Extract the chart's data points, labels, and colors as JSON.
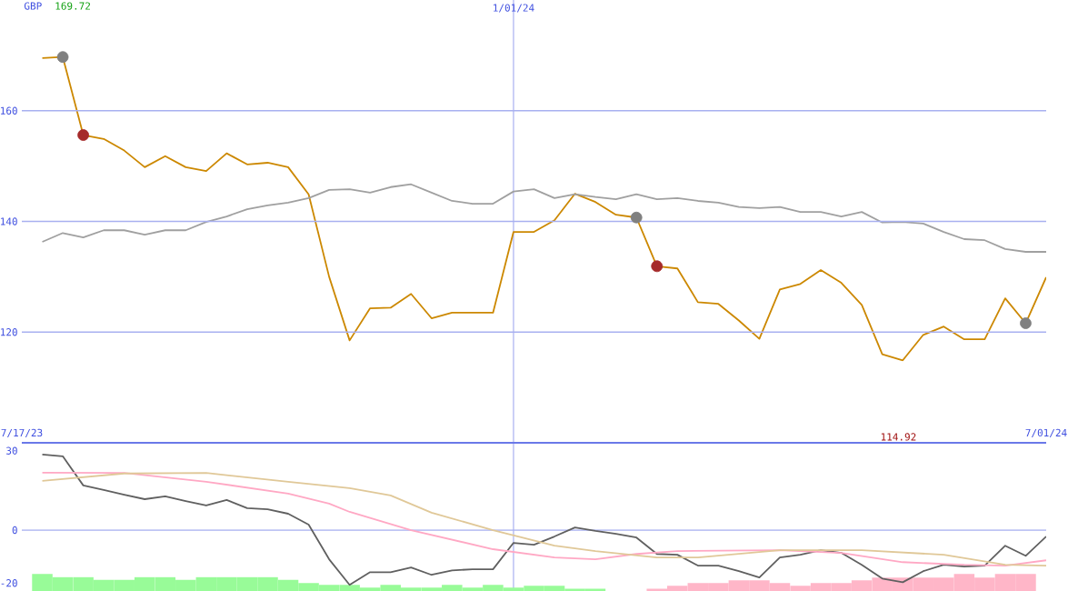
{
  "chart_data": [
    {
      "type": "line",
      "ylabel": "GBP",
      "annotations": [
        "169.72",
        "114.92"
      ],
      "x": [
        "2023-07-24",
        "2023-07-31",
        "2023-08-07",
        "2023-08-14",
        "2023-08-21",
        "2023-08-28",
        "2023-09-04",
        "2023-09-11",
        "2023-09-18",
        "2023-09-25",
        "2023-10-02",
        "2023-10-09",
        "2023-10-16",
        "2023-10-23",
        "2023-10-30",
        "2023-11-06",
        "2023-11-13",
        "2023-11-20",
        "2023-11-27",
        "2023-12-04",
        "2023-12-11",
        "2023-12-18",
        "2023-12-25",
        "2024-01-01",
        "2024-01-08",
        "2024-01-15",
        "2024-01-22",
        "2024-01-29",
        "2024-02-05",
        "2024-02-12",
        "2024-02-19",
        "2024-02-26",
        "2024-03-04",
        "2024-03-11",
        "2024-03-18",
        "2024-03-25",
        "2024-04-01",
        "2024-04-08",
        "2024-04-15",
        "2024-04-22",
        "2024-04-29",
        "2024-05-06",
        "2024-05-13",
        "2024-05-20",
        "2024-05-27",
        "2024-06-03",
        "2024-06-10",
        "2024-06-17",
        "2024-06-24",
        "2024-07-01"
      ],
      "xlim": [
        "2023-07-17",
        "2024-07-01"
      ],
      "xticks": [
        {
          "value": "2023-07-17",
          "label": "7/17/23"
        },
        {
          "value": "2024-07-01",
          "label": "7/01/24"
        }
      ],
      "ref_lines": [
        {
          "axis": "x",
          "value": "2024-01-01",
          "label": "1/01/24",
          "color": "#a8b0f0"
        }
      ],
      "ylim": [
        100,
        180
      ],
      "yticks": [
        120,
        140,
        160
      ],
      "grid": "y",
      "series": [
        {
          "color": "#cc8800",
          "values": [
            169.5,
            169.7,
            155.6,
            154.9,
            152.8,
            149.8,
            151.8,
            149.8,
            149.1,
            152.3,
            150.3,
            150.6,
            149.8,
            144.9,
            130.0,
            118.5,
            124.3,
            124.4,
            126.9,
            122.5,
            123.5,
            123.5,
            123.5,
            138.1,
            138.1,
            140.2,
            145.0,
            143.5,
            141.2,
            140.7,
            131.9,
            131.5,
            125.4,
            125.1,
            122.1,
            118.8,
            127.7,
            128.7,
            131.2,
            128.9,
            124.9,
            116.0,
            114.9,
            119.5,
            121.0,
            118.7,
            118.7,
            126.1,
            121.6,
            129.9
          ]
        },
        {
          "color": "#a0a0a0",
          "values": [
            136.3,
            137.9,
            137.1,
            138.4,
            138.4,
            137.6,
            138.4,
            138.4,
            139.9,
            140.9,
            142.2,
            142.9,
            143.4,
            144.2,
            145.7,
            145.8,
            145.2,
            146.2,
            146.7,
            145.2,
            143.7,
            143.2,
            143.2,
            145.4,
            145.8,
            144.2,
            144.9,
            144.4,
            144.0,
            144.9,
            144.0,
            144.2,
            143.7,
            143.4,
            142.6,
            142.4,
            142.6,
            141.7,
            141.7,
            140.9,
            141.7,
            139.8,
            139.9,
            139.6,
            138.1,
            136.8,
            136.6,
            135.0,
            134.5,
            134.5
          ]
        },
        {
          "type": "scatter",
          "color": "#808080",
          "x": [
            "2023-07-31",
            "2024-02-12",
            "2024-06-24"
          ],
          "values": [
            169.7,
            140.7,
            121.6
          ]
        },
        {
          "type": "scatter",
          "color": "#a52a2a",
          "x": [
            "2023-08-07",
            "2024-02-19"
          ],
          "values": [
            155.6,
            131.9
          ]
        }
      ]
    },
    {
      "type": "line",
      "tick_labels": "y",
      "x": [
        "2023-07-24",
        "2023-07-31",
        "2023-08-07",
        "2023-08-14",
        "2023-08-21",
        "2023-08-28",
        "2023-09-04",
        "2023-09-11",
        "2023-09-18",
        "2023-09-25",
        "2023-10-02",
        "2023-10-09",
        "2023-10-16",
        "2023-10-23",
        "2023-10-30",
        "2023-11-06",
        "2023-11-13",
        "2023-11-20",
        "2023-11-27",
        "2023-12-04",
        "2023-12-11",
        "2023-12-18",
        "2023-12-25",
        "2024-01-01",
        "2024-01-08",
        "2024-01-15",
        "2024-01-22",
        "2024-01-29",
        "2024-02-05",
        "2024-02-12",
        "2024-02-19",
        "2024-02-26",
        "2024-03-04",
        "2024-03-11",
        "2024-03-18",
        "2024-03-25",
        "2024-04-01",
        "2024-04-08",
        "2024-04-15",
        "2024-04-22",
        "2024-04-29",
        "2024-05-06",
        "2024-05-13",
        "2024-05-20",
        "2024-05-27",
        "2024-06-03",
        "2024-06-10",
        "2024-06-17",
        "2024-06-24",
        "2024-07-01"
      ],
      "xlim": [
        "2023-07-17",
        "2024-07-01"
      ],
      "ylim": [
        -23,
        33
      ],
      "yticks": [
        30,
        0,
        -20
      ],
      "ref_lines": [
        {
          "axis": "y",
          "value": 0,
          "color": "#a8b0f0"
        },
        {
          "axis": "x",
          "value": "2024-01-01",
          "color": "#a8b0f0"
        }
      ],
      "series": [
        {
          "type": "bar",
          "colors": [
            "#98fb98",
            "#98fb98",
            "#98fb98",
            "#98fb98",
            "#98fb98",
            "#98fb98",
            "#98fb98",
            "#98fb98",
            "#98fb98",
            "#98fb98",
            "#98fb98",
            "#98fb98",
            "#98fb98",
            "#98fb98",
            "#98fb98",
            "#98fb98",
            "#98fb98",
            "#98fb98",
            "#98fb98",
            "#98fb98",
            "#98fb98",
            "#98fb98",
            "#98fb98",
            "#98fb98",
            "#98fb98",
            "#98fb98",
            "#98fb98",
            "#98fb98",
            "#98fb98",
            "#98fb98",
            "#ffb6c8",
            "#ffb6c8",
            "#ffb6c8",
            "#ffb6c8",
            "#ffb6c8",
            "#ffb6c8",
            "#ffb6c8",
            "#ffb6c8",
            "#ffb6c8",
            "#ffb6c8",
            "#ffb6c8",
            "#ffb6c8",
            "#ffb6c8",
            "#ffb6c8",
            "#ffb6c8",
            "#ffb6c8",
            "#ffb6c8",
            "#ffb6c8",
            "#ffb6c8",
            "#ffb6c8"
          ],
          "base": [
            -23,
            -23,
            -23,
            -23,
            -23,
            -23,
            -23,
            -23,
            -23,
            -23,
            -23,
            -23,
            -23,
            -23,
            -23,
            -23,
            -23,
            -23,
            -23,
            -23,
            -23,
            -23,
            -23,
            -23,
            -23,
            -23,
            -23,
            -23,
            null,
            null,
            -23,
            -23,
            -23,
            -23,
            -23,
            -23,
            -23,
            -23,
            -23,
            -23,
            -23,
            -23,
            -23,
            -23,
            -23,
            -23,
            -23,
            -23,
            -23,
            null
          ],
          "values": [
            6.4,
            5.2,
            5.2,
            4.2,
            4.2,
            5.2,
            5.2,
            4.2,
            5.2,
            5.2,
            5.2,
            5.2,
            4.2,
            3.0,
            2.3,
            2.3,
            1.3,
            2.3,
            1.3,
            1.3,
            2.3,
            1.3,
            2.3,
            1.3,
            2.0,
            2.0,
            0.9,
            0.9,
            null,
            null,
            0.9,
            2.0,
            3.0,
            3.0,
            4.0,
            4.0,
            3.0,
            2.0,
            3.0,
            3.0,
            4.0,
            5.1,
            5.1,
            5.1,
            5.1,
            6.4,
            5.1,
            6.4,
            6.4,
            null
          ]
        },
        {
          "color": "#606060",
          "values": [
            28.6,
            27.9,
            16.9,
            15.2,
            13.4,
            11.7,
            12.8,
            11.0,
            9.3,
            11.4,
            8.3,
            7.9,
            6.2,
            2.1,
            -11.0,
            -20.7,
            -15.9,
            -15.9,
            -14.1,
            -16.9,
            -15.2,
            -14.8,
            -14.8,
            -4.8,
            -5.5,
            -2.4,
            1.0,
            -0.3,
            -1.4,
            -2.8,
            -9.0,
            -9.3,
            -13.4,
            -13.4,
            -15.5,
            -17.9,
            -10.3,
            -9.3,
            -7.6,
            -8.6,
            -13.1,
            -18.3,
            -19.7,
            -15.5,
            -13.1,
            -13.8,
            -13.4,
            -5.9,
            -9.7,
            -2.4
          ]
        },
        {
          "color": "#ffa8c4",
          "x": [
            "2023-07-24",
            "2023-08-21",
            "2023-09-18",
            "2023-10-16",
            "2023-10-30",
            "2023-11-06",
            "2023-11-27",
            "2023-12-25",
            "2024-01-15",
            "2024-01-29",
            "2024-02-12",
            "2024-02-26",
            "2024-04-01",
            "2024-04-22",
            "2024-05-13",
            "2024-06-03",
            "2024-06-17",
            "2024-07-01"
          ],
          "values": [
            21.7,
            21.6,
            18.3,
            13.8,
            10.0,
            6.9,
            0,
            -7.2,
            -10.3,
            -11.0,
            -9.0,
            -7.9,
            -7.6,
            -8.6,
            -12.1,
            -13.1,
            -13.4,
            -11.4
          ]
        },
        {
          "color": "#e0c898",
          "x": [
            "2023-07-24",
            "2023-08-21",
            "2023-09-18",
            "2023-10-16",
            "2023-11-06",
            "2023-11-20",
            "2023-12-04",
            "2023-12-25",
            "2024-01-15",
            "2024-01-29",
            "2024-02-19",
            "2024-03-04",
            "2024-04-01",
            "2024-04-29",
            "2024-05-27",
            "2024-06-17",
            "2024-07-01"
          ],
          "values": [
            18.6,
            21.4,
            21.6,
            18.3,
            15.9,
            13.1,
            6.6,
            0,
            -5.9,
            -7.9,
            -10.3,
            -10.3,
            -7.6,
            -7.6,
            -9.3,
            -13.1,
            -13.4
          ]
        }
      ]
    }
  ]
}
